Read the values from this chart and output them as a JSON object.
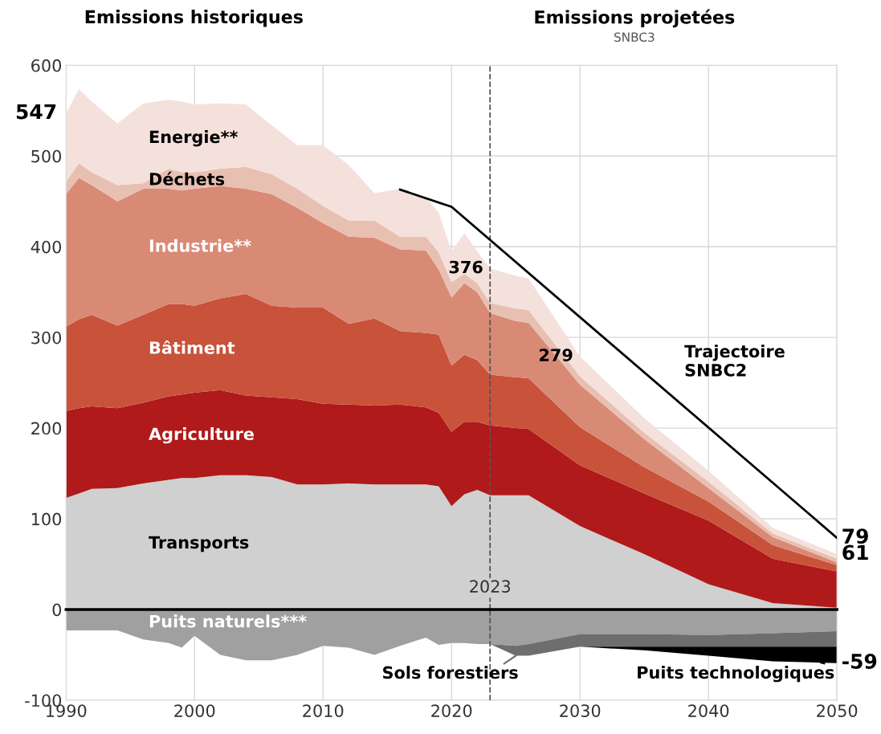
{
  "chart_data": [
    {
      "type": "area",
      "stacked": true,
      "x": [
        1990,
        1991,
        1992,
        1994,
        1996,
        1998,
        1999,
        2000,
        2002,
        2004,
        2006,
        2008,
        2010,
        2012,
        2014,
        2016,
        2018,
        2019,
        2020,
        2021,
        2022,
        2023,
        2025,
        2026,
        2030,
        2035,
        2040,
        2045,
        2050
      ],
      "series": [
        {
          "name": "Transports",
          "color": "#d0d0d0",
          "values": [
            123,
            128,
            133,
            134,
            139,
            143,
            145,
            145,
            148,
            148,
            146,
            138,
            138,
            139,
            138,
            138,
            138,
            136,
            114,
            127,
            132,
            126,
            126,
            126,
            92,
            61,
            28,
            7,
            2
          ]
        },
        {
          "name": "Agriculture",
          "color": "#b01a1a",
          "values": [
            96,
            94,
            91,
            88,
            89,
            92,
            92,
            94,
            94,
            88,
            88,
            94,
            89,
            87,
            87,
            88,
            85,
            81,
            82,
            80,
            75,
            77,
            74,
            73,
            67,
            67,
            70,
            49,
            40
          ]
        },
        {
          "name": "Bâtiment",
          "color": "#c9523b",
          "values": [
            93,
            98,
            101,
            91,
            97,
            102,
            100,
            96,
            101,
            112,
            101,
            101,
            106,
            89,
            96,
            81,
            82,
            86,
            73,
            74,
            68,
            56,
            56,
            56,
            42,
            29,
            21,
            15,
            7
          ]
        },
        {
          "name": "Industrie**",
          "color": "#d98a75",
          "values": [
            146,
            156,
            143,
            137,
            139,
            127,
            125,
            129,
            124,
            116,
            123,
            110,
            93,
            96,
            89,
            90,
            91,
            72,
            75,
            79,
            75,
            68,
            62,
            61,
            47,
            31,
            15,
            9,
            3
          ]
        },
        {
          "name": "Déchets",
          "color": "#e8c0b2",
          "values": [
            14,
            16,
            14,
            18,
            6,
            22,
            20,
            18,
            19,
            24,
            22,
            21,
            19,
            18,
            19,
            14,
            15,
            19,
            17,
            10,
            10,
            11,
            14,
            14,
            9,
            7,
            7,
            4,
            4
          ]
        },
        {
          "name": "Energie**",
          "color": "#f4e1db",
          "values": [
            75,
            82,
            78,
            68,
            88,
            76,
            78,
            75,
            72,
            69,
            54,
            48,
            67,
            61,
            30,
            53,
            43,
            44,
            34,
            45,
            35,
            38,
            36,
            35,
            22,
            16,
            12,
            6,
            5
          ]
        },
        {
          "name": "Trajectoire\nSNBC2",
          "type": "line",
          "color": "#000000",
          "x": [
            2016,
            2020,
            2050
          ],
          "values": [
            463,
            444,
            79
          ]
        }
      ],
      "xlim": [
        1990,
        2050
      ],
      "xticks": [
        1990,
        2000,
        2010,
        2020,
        2030,
        2040,
        2050
      ],
      "ylim": [
        0,
        600
      ],
      "yticks": [
        100,
        200,
        300,
        400,
        500,
        600
      ],
      "tick_labels": "y",
      "grid": true,
      "ref_lines": [
        {
          "axis": "x",
          "value": 2023,
          "label": "2023",
          "color": "#555555",
          "line_style": "dashed"
        }
      ],
      "annotations": [
        "Emissions historiques",
        "Emissions projetées",
        "SNBC3",
        {
          "text": "547",
          "x": 1990,
          "y": 547
        },
        {
          "text": "376",
          "x": 2023,
          "y": 376
        },
        {
          "text": "279",
          "x": 2030,
          "y": 279
        },
        {
          "text": "79",
          "x": 2050,
          "y": 79
        },
        {
          "text": "61",
          "x": 2050,
          "y": 61
        }
      ]
    },
    {
      "type": "area",
      "stacked": true,
      "x": [
        1990,
        1991,
        1992,
        1994,
        1996,
        1998,
        1999,
        2000,
        2002,
        2004,
        2006,
        2008,
        2010,
        2012,
        2014,
        2016,
        2018,
        2019,
        2020,
        2021,
        2022,
        2023,
        2025,
        2026,
        2030,
        2035,
        2040,
        2045,
        2050
      ],
      "series": [
        {
          "name": "Puits naturels***",
          "color": "#a0a0a0",
          "values": [
            -23,
            -23,
            -23,
            -23,
            -33,
            -37,
            -42,
            -29,
            -50,
            -56,
            -56,
            -50,
            -40,
            -42,
            -50,
            -40,
            -31,
            -39,
            -37,
            -37,
            -38,
            -38,
            -40,
            -38,
            -27,
            -27,
            -28,
            -26,
            -24
          ]
        },
        {
          "name": "Sols forestiers",
          "color": "#6e6e6e",
          "values": [
            null,
            null,
            null,
            null,
            null,
            null,
            null,
            null,
            null,
            null,
            null,
            null,
            null,
            null,
            null,
            null,
            null,
            null,
            null,
            null,
            null,
            0,
            -11,
            -13,
            -14,
            -14,
            -13,
            -15,
            -17
          ]
        },
        {
          "name": "Puits technologiques",
          "color": "#000000",
          "values": [
            null,
            null,
            null,
            null,
            null,
            null,
            null,
            null,
            null,
            null,
            null,
            null,
            null,
            null,
            null,
            null,
            null,
            null,
            null,
            null,
            null,
            null,
            null,
            null,
            0,
            -4,
            -10,
            -16,
            -18
          ]
        }
      ],
      "xlim": [
        1990,
        2050
      ],
      "xticks": [
        1990,
        2000,
        2010,
        2020,
        2030,
        2040,
        2050
      ],
      "ylim": [
        -100,
        0
      ],
      "yticks": [
        -100,
        0
      ],
      "legend": "bottom",
      "grid": true,
      "ref_lines": [
        {
          "axis": "x",
          "value": 2023,
          "color": "#555555",
          "line_style": "dashed"
        }
      ],
      "annotations": [
        {
          "text": "-59",
          "x": 2050,
          "y": -59
        }
      ]
    }
  ]
}
